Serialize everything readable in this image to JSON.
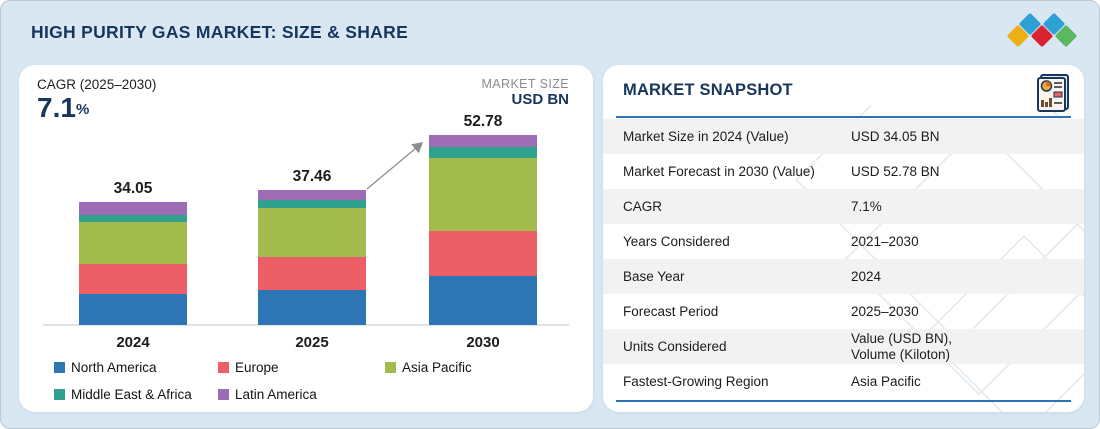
{
  "header": {
    "title": "HIGH PURITY GAS MARKET: SIZE & SHARE",
    "logo_diamond_colors": [
      "#2da0d6",
      "#2da0d6",
      "#eeaf15",
      "#da2232",
      "#5cb860"
    ]
  },
  "chart_panel": {
    "cagr_label": "CAGR (2025–2030)",
    "cagr_value": "7.1",
    "cagr_unit": "%",
    "market_size_label": "MARKET SIZE",
    "market_size_unit": "USD BN"
  },
  "chart_data": {
    "type": "bar",
    "stacked": true,
    "unit": "USD BN",
    "categories": [
      "2024",
      "2025",
      "2030"
    ],
    "totals": [
      34.05,
      37.46,
      52.78
    ],
    "total_labels": [
      "34.05",
      "37.46",
      "52.78"
    ],
    "series": [
      {
        "name": "North America",
        "color": "#2e75b6",
        "values": [
          8.7,
          9.7,
          13.6
        ]
      },
      {
        "name": "Europe",
        "color": "#ec5f67",
        "values": [
          8.2,
          9.2,
          12.5
        ]
      },
      {
        "name": "Asia Pacific",
        "color": "#a3ba4c",
        "values": [
          11.8,
          13.6,
          20.3
        ]
      },
      {
        "name": "Middle East & Africa",
        "color": "#2fa18c",
        "values": [
          2.0,
          2.2,
          3.0
        ]
      },
      {
        "name": "Latin America",
        "color": "#9d6cb4",
        "values": [
          3.35,
          2.76,
          3.38
        ]
      }
    ],
    "legend_position": "bottom",
    "grid": false
  },
  "snapshot": {
    "title": "MARKET SNAPSHOT",
    "rows": [
      {
        "label": "Market Size in 2024 (Value)",
        "value": "USD 34.05 BN"
      },
      {
        "label": "Market Forecast in 2030 (Value)",
        "value": "USD 52.78 BN"
      },
      {
        "label": "CAGR",
        "value": "7.1%"
      },
      {
        "label": "Years Considered",
        "value": "2021–2030"
      },
      {
        "label": "Base Year",
        "value": "2024"
      },
      {
        "label": "Forecast Period",
        "value": "2025–2030"
      },
      {
        "label": "Units Considered",
        "value": "Value (USD BN),\nVolume (Kiloton)"
      },
      {
        "label": "Fastest-Growing Region",
        "value": "Asia Pacific"
      }
    ]
  }
}
